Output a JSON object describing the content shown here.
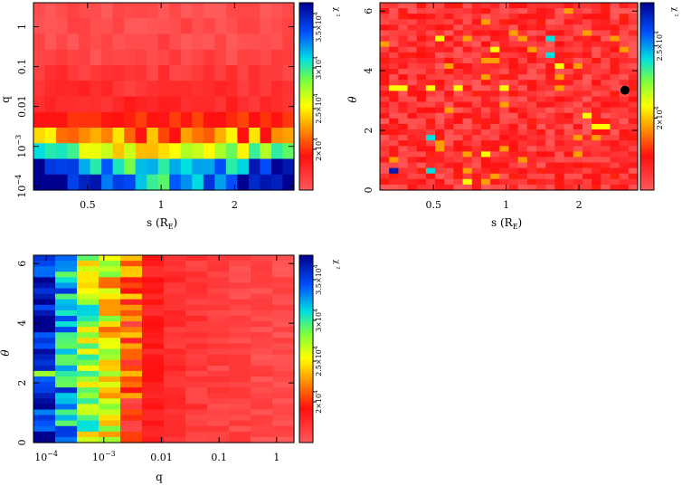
{
  "chart_data": [
    {
      "type": "heatmap",
      "title": "",
      "xlabel": "s (R_E)",
      "xlabel_main": "s (R",
      "xlabel_sub": "E",
      "xlabel_close": ")",
      "ylabel": "q",
      "xscale": "log",
      "yscale": "log",
      "xlim": [
        0.3,
        3.5
      ],
      "ylim": [
        8e-05,
        4
      ],
      "xticks": [
        {
          "v": 0.5,
          "label": "0.5"
        },
        {
          "v": 1,
          "label": "1"
        },
        {
          "v": 2,
          "label": "2"
        }
      ],
      "yticks": [
        {
          "v": 1,
          "label": "1"
        },
        {
          "v": 0.1,
          "label": "0.1"
        },
        {
          "v": 0.01,
          "label": "0.01"
        },
        {
          "v": 0.001,
          "base": "10",
          "exp": "−3"
        },
        {
          "v": 0.0001,
          "base": "10",
          "exp": "−4"
        }
      ],
      "grid": false,
      "colorbar": {
        "label": "χ ²",
        "min": 15000,
        "max": 38000,
        "ticks": [
          {
            "v": 20000,
            "text": "2×10"
          },
          {
            "v": 25000,
            "text": "2.5×10"
          },
          {
            "v": 30000,
            "text": "3×10"
          },
          {
            "v": 35000,
            "text": "3.5×10"
          }
        ],
        "exp": "4"
      },
      "grid_description": "chi-squared over (s, q): low chi2 (red) for q > 1e-3, rising to yellow/green/blue for q < 1e-3",
      "values": {
        "nx": 23,
        "ny": 12,
        "rows_top_to_bottom": [
          "low",
          "low",
          "low",
          "low",
          "low",
          "mixed_low",
          "mixed_low",
          "red",
          "orange_band",
          "yellow_band",
          "green_blue_band",
          "blue_band"
        ]
      }
    },
    {
      "type": "heatmap",
      "title": "",
      "xlabel": "s (R_E)",
      "xlabel_main": "s (R",
      "xlabel_sub": "E",
      "xlabel_close": ")",
      "ylabel": "θ",
      "xscale": "log",
      "yscale": "linear",
      "xlim": [
        0.3,
        3.5
      ],
      "ylim": [
        0,
        6.28
      ],
      "xticks": [
        {
          "v": 0.5,
          "label": "0.5"
        },
        {
          "v": 1,
          "label": "1"
        },
        {
          "v": 2,
          "label": "2"
        }
      ],
      "yticks": [
        {
          "v": 0,
          "label": "0"
        },
        {
          "v": 2,
          "label": "2"
        },
        {
          "v": 4,
          "label": "4"
        },
        {
          "v": 6,
          "label": "6"
        }
      ],
      "grid": false,
      "colorbar": {
        "label": "χ ²",
        "min": 15000,
        "max": 28000,
        "ticks": [
          {
            "v": 20000,
            "text": "2×10"
          },
          {
            "v": 25000,
            "text": "2.5×10"
          }
        ],
        "exp": "4"
      },
      "best_fit_marker": {
        "s": 3.1,
        "theta": 3.35
      }
    },
    {
      "type": "heatmap",
      "title": "",
      "xlabel": "q",
      "ylabel": "θ",
      "xscale": "log",
      "yscale": "linear",
      "xlim": [
        6e-05,
        2
      ],
      "ylim": [
        0,
        6.28
      ],
      "xticks": [
        {
          "v": 0.0001,
          "base": "10",
          "exp": "−4"
        },
        {
          "v": 0.001,
          "base": "10",
          "exp": "−3"
        },
        {
          "v": 0.01,
          "label": "0.01"
        },
        {
          "v": 0.1,
          "label": "0.1"
        },
        {
          "v": 1,
          "label": "1"
        }
      ],
      "yticks": [
        {
          "v": 0,
          "label": "0"
        },
        {
          "v": 2,
          "label": "2"
        },
        {
          "v": 4,
          "label": "4"
        },
        {
          "v": 6,
          "label": "6"
        }
      ],
      "grid": false,
      "colorbar": {
        "label": "χ ²",
        "min": 15000,
        "max": 38000,
        "ticks": [
          {
            "v": 20000,
            "text": "2×10"
          },
          {
            "v": 25000,
            "text": "2.5×10"
          },
          {
            "v": 30000,
            "text": "3×10"
          },
          {
            "v": 35000,
            "text": "3.5×10"
          }
        ],
        "exp": "4"
      }
    }
  ]
}
